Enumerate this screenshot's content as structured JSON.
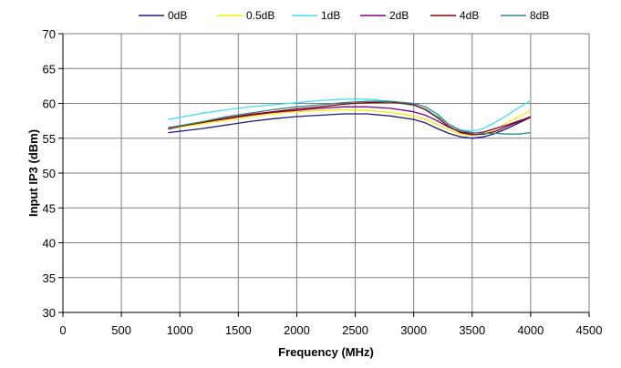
{
  "chart_data": {
    "type": "line",
    "title": "",
    "xlabel": "Frequency (MHz)",
    "ylabel": "Input IP3 (dBm)",
    "xlim": [
      0,
      4500
    ],
    "ylim": [
      30,
      70
    ],
    "xticks": [
      0,
      500,
      1000,
      1500,
      2000,
      2500,
      3000,
      3500,
      4000,
      4500
    ],
    "yticks": [
      30,
      35,
      40,
      45,
      50,
      55,
      60,
      65,
      70
    ],
    "grid": true,
    "legend_position": "top",
    "x": [
      900,
      1000,
      1200,
      1400,
      1600,
      1800,
      2000,
      2200,
      2400,
      2600,
      2800,
      3000,
      3100,
      3200,
      3300,
      3400,
      3500,
      3600,
      3700,
      3800,
      3900,
      4000
    ],
    "series": [
      {
        "name": "0dB",
        "color": "#1a1a80",
        "values": [
          55.8,
          56.0,
          56.4,
          56.9,
          57.4,
          57.8,
          58.1,
          58.3,
          58.5,
          58.5,
          58.2,
          57.7,
          57.2,
          56.4,
          55.7,
          55.2,
          55.0,
          55.2,
          55.7,
          56.4,
          57.2,
          58.0
        ]
      },
      {
        "name": "0.5dB",
        "color": "#f0f000",
        "values": [
          56.3,
          56.6,
          57.1,
          57.6,
          58.1,
          58.5,
          58.8,
          59.0,
          59.1,
          59.0,
          58.7,
          58.2,
          57.7,
          57.0,
          56.2,
          55.6,
          55.4,
          55.7,
          56.3,
          57.2,
          58.1,
          59.0
        ]
      },
      {
        "name": "1dB",
        "color": "#40e0f0",
        "values": [
          57.7,
          58.0,
          58.6,
          59.1,
          59.5,
          59.8,
          60.1,
          60.4,
          60.6,
          60.6,
          60.3,
          59.7,
          59.2,
          58.2,
          57.0,
          56.2,
          56.0,
          56.4,
          57.3,
          58.3,
          59.4,
          60.4
        ]
      },
      {
        "name": "2dB",
        "color": "#800080",
        "values": [
          56.5,
          56.8,
          57.3,
          57.8,
          58.3,
          58.7,
          59.0,
          59.3,
          59.5,
          59.5,
          59.3,
          58.8,
          58.3,
          57.5,
          56.6,
          55.9,
          55.7,
          55.9,
          56.4,
          56.9,
          57.5,
          58.0
        ]
      },
      {
        "name": "4dB",
        "color": "#8b0000",
        "values": [
          56.3,
          56.7,
          57.3,
          57.9,
          58.4,
          58.8,
          59.2,
          59.5,
          59.9,
          60.1,
          60.2,
          59.8,
          59.1,
          58.0,
          56.7,
          55.8,
          55.5,
          55.6,
          56.0,
          56.7,
          57.4,
          58.1
        ]
      },
      {
        "name": "8dB",
        "color": "#2e8b8b",
        "values": [
          56.4,
          56.8,
          57.4,
          58.1,
          58.6,
          59.1,
          59.5,
          59.8,
          60.1,
          60.3,
          60.3,
          60.0,
          59.5,
          58.5,
          57.0,
          56.1,
          55.8,
          55.7,
          55.7,
          55.6,
          55.6,
          55.8
        ]
      }
    ]
  }
}
